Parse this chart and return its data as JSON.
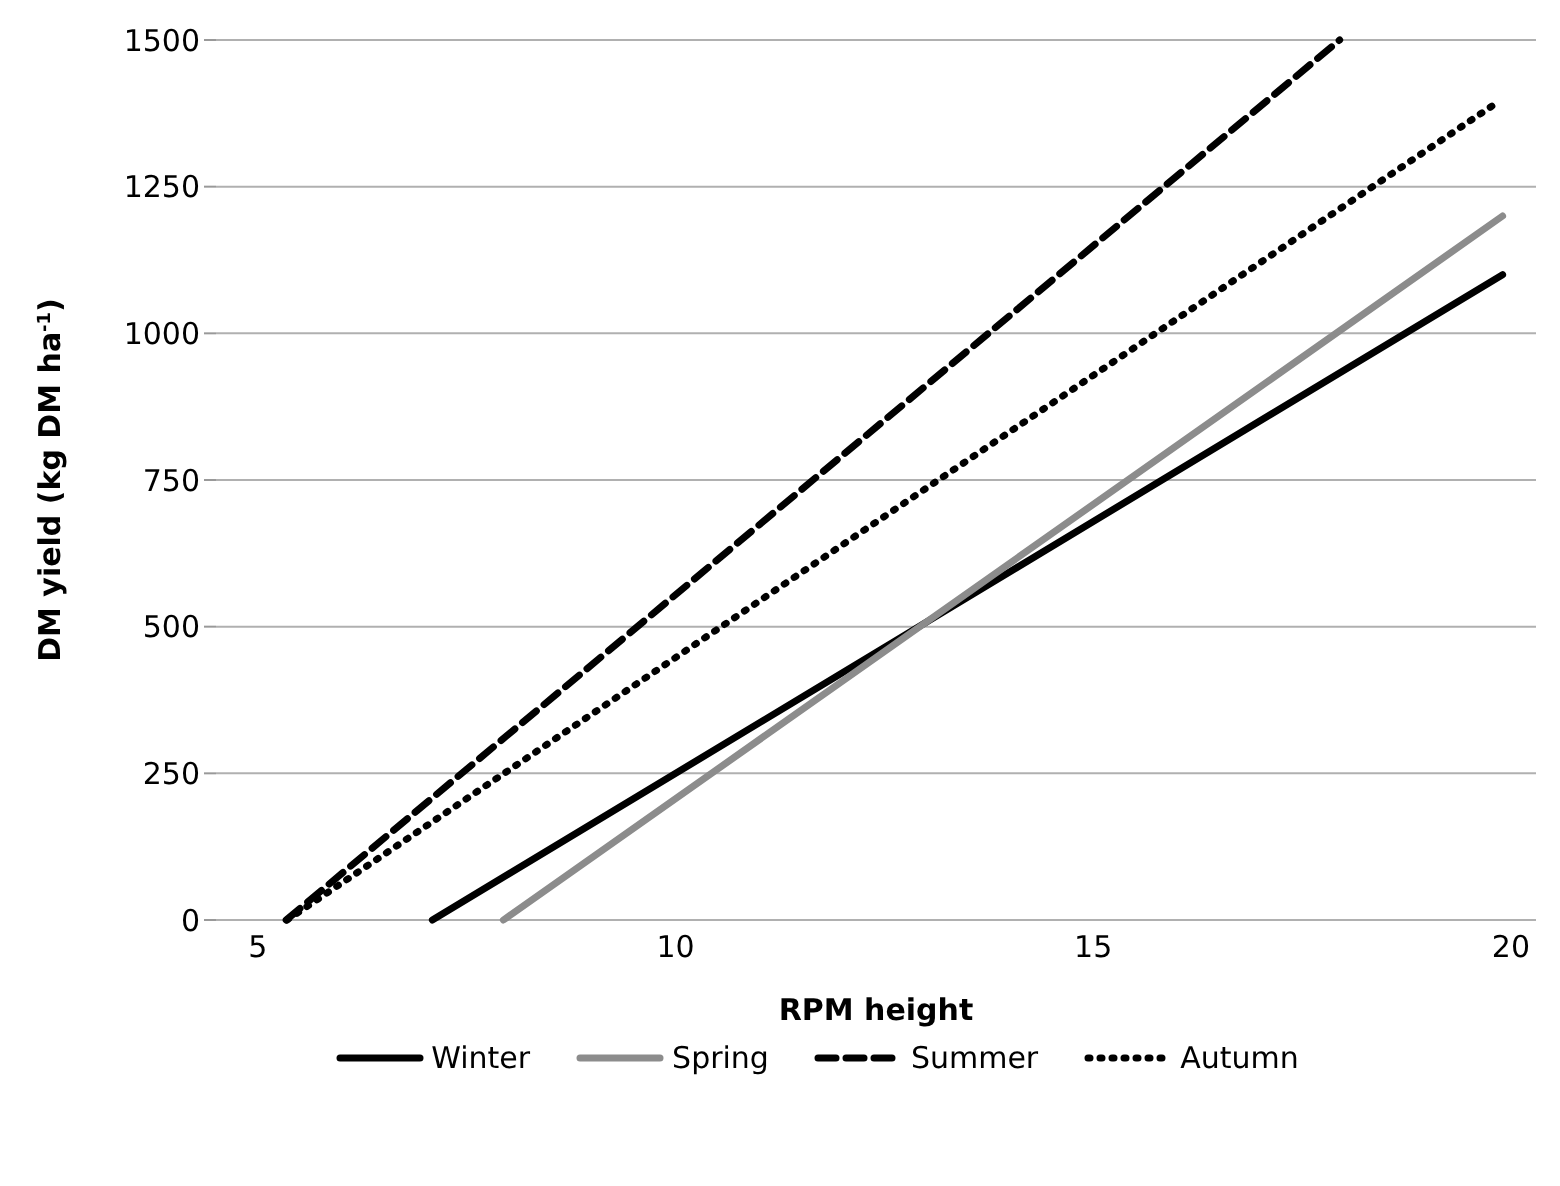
{
  "chart_data": {
    "type": "line",
    "xlabel": "RPM height",
    "ylabel": "DM yield (kg DM ha$^{-1}$)",
    "xlim": [
      4.5,
      20.3
    ],
    "xticks": [
      5,
      10,
      15,
      20
    ],
    "ylim": [
      0,
      1500
    ],
    "yticks": [
      0,
      250,
      500,
      750,
      1000,
      1250,
      1500
    ],
    "grid": "y",
    "legend": "bottom",
    "marker": "none",
    "series": [
      {
        "name": "Winter",
        "color": "#000000",
        "line_style": "solid",
        "x": [
          7.09,
          19.9
        ],
        "values": [
          0,
          1100
        ]
      },
      {
        "name": "Spring",
        "color": "#8c8c8c",
        "line_style": "solid",
        "x": [
          7.94,
          19.9
        ],
        "values": [
          0,
          1200
        ]
      },
      {
        "name": "Summer",
        "color": "#000000",
        "line_style": "dashed",
        "x": [
          5.34,
          17.95
        ],
        "values": [
          0,
          1500
        ]
      },
      {
        "name": "Autumn",
        "color": "#000000",
        "line_style": "dotted",
        "x": [
          5.35,
          19.8
        ],
        "values": [
          0,
          1390
        ]
      }
    ]
  }
}
